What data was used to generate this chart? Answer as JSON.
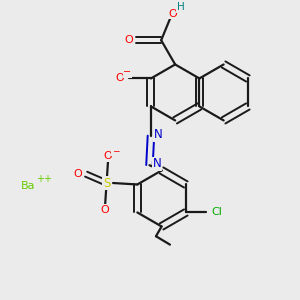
{
  "bg_color": "#ebebeb",
  "bond_color": "#1a1a1a",
  "atom_colors": {
    "O": "#ff0000",
    "N": "#0000cc",
    "S": "#cccc00",
    "Cl": "#00aa00",
    "Ba": "#66cc00",
    "H": "#008080",
    "minus": "#ff0000",
    "plus": "#66cc00"
  }
}
